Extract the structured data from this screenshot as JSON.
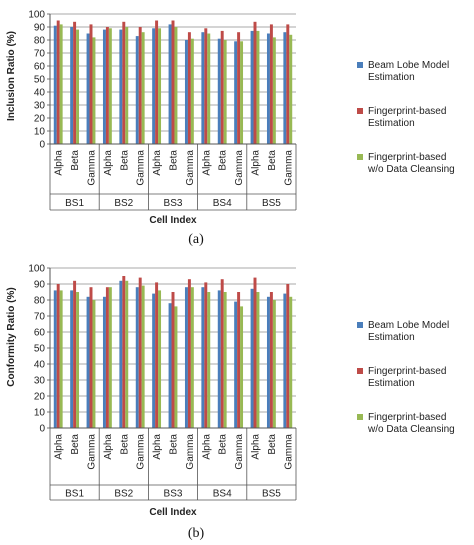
{
  "colors": {
    "s1": "#4a7ebb",
    "s2": "#be4b48",
    "s3": "#98b954",
    "grid": "#8c8c8c",
    "axis": "#555555"
  },
  "chart_data": [
    {
      "type": "bar",
      "caption": "(a)",
      "ylabel": "Inclusion Ratio (%)",
      "xlabel": "Cell Index",
      "ylim": [
        0,
        100
      ],
      "yticks": [
        0,
        10,
        20,
        30,
        40,
        50,
        60,
        70,
        80,
        90,
        100
      ],
      "grid": true,
      "legend_position": "right",
      "groups": [
        "BS1",
        "BS2",
        "BS3",
        "BS4",
        "BS5"
      ],
      "categories": [
        "Alpha",
        "Beta",
        "Gamma",
        "Alpha",
        "Beta",
        "Gamma",
        "Alpha",
        "Beta",
        "Gamma",
        "Alpha",
        "Beta",
        "Gamma",
        "Alpha",
        "Beta",
        "Gamma"
      ],
      "series": [
        {
          "name": "Beam Lobe Model Estimation",
          "values": [
            91,
            90,
            85,
            88,
            88,
            83,
            89,
            92,
            80,
            86,
            81,
            79,
            87,
            85,
            86
          ]
        },
        {
          "name": "Fingerprint-based Estimation",
          "values": [
            95,
            94,
            92,
            90,
            94,
            90,
            95,
            95,
            86,
            89,
            87,
            86,
            94,
            92,
            92
          ]
        },
        {
          "name": "Fingerprint-based w/o Data Cleansing",
          "values": [
            92,
            88,
            82,
            89,
            90,
            86,
            89,
            90,
            81,
            85,
            80,
            79,
            87,
            82,
            84
          ]
        }
      ]
    },
    {
      "type": "bar",
      "caption": "(b)",
      "ylabel": "Conformity Ratio (%)",
      "xlabel": "Cell Index",
      "ylim": [
        0,
        100
      ],
      "yticks": [
        0,
        10,
        20,
        30,
        40,
        50,
        60,
        70,
        80,
        90,
        100
      ],
      "grid": true,
      "legend_position": "right",
      "groups": [
        "BS1",
        "BS2",
        "BS3",
        "BS4",
        "BS5"
      ],
      "categories": [
        "Alpha",
        "Beta",
        "Gamma",
        "Alpha",
        "Beta",
        "Gamma",
        "Alpha",
        "Beta",
        "Gamma",
        "Alpha",
        "Beta",
        "Gamma",
        "Alpha",
        "Beta",
        "Gamma"
      ],
      "series": [
        {
          "name": "Beam Lobe Model Estimation",
          "values": [
            86,
            86,
            82,
            82,
            92,
            88,
            84,
            78,
            88,
            88,
            86,
            79,
            87,
            82,
            84
          ]
        },
        {
          "name": "Fingerprint-based Estimation",
          "values": [
            90,
            92,
            88,
            88,
            95,
            94,
            91,
            85,
            93,
            91,
            93,
            85,
            94,
            85,
            90
          ]
        },
        {
          "name": "Fingerprint-based w/o Data Cleansing",
          "values": [
            86,
            85,
            80,
            88,
            92,
            89,
            86,
            76,
            88,
            85,
            85,
            76,
            85,
            80,
            82
          ]
        }
      ]
    }
  ]
}
